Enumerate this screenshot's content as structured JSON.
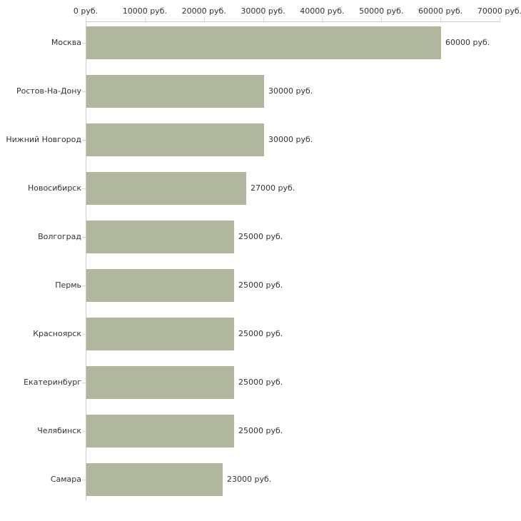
{
  "chart_data": {
    "type": "bar",
    "orientation": "horizontal",
    "title": "",
    "xlabel": "",
    "ylabel": "",
    "unit": "руб.",
    "categories": [
      "Москва",
      "Ростов-На-Дону",
      "Нижний Новгород",
      "Новосибирск",
      "Волгоград",
      "Пермь",
      "Красноярск",
      "Екатеринбург",
      "Челябинск",
      "Самара"
    ],
    "values": [
      60000,
      30000,
      30000,
      27000,
      25000,
      25000,
      25000,
      25000,
      25000,
      23000
    ],
    "value_labels": [
      "60000 руб.",
      "30000 руб.",
      "30000 руб.",
      "27000 руб.",
      "25000 руб.",
      "25000 руб.",
      "25000 руб.",
      "25000 руб.",
      "25000 руб.",
      "23000 руб."
    ],
    "x_ticks": [
      {
        "value": 0,
        "label": "0 руб."
      },
      {
        "value": 10000,
        "label": "10000 руб."
      },
      {
        "value": 20000,
        "label": "20000 руб."
      },
      {
        "value": 30000,
        "label": "30000 руб."
      },
      {
        "value": 40000,
        "label": "40000 руб."
      },
      {
        "value": 50000,
        "label": "50000 руб."
      },
      {
        "value": 60000,
        "label": "60000 руб."
      },
      {
        "value": 70000,
        "label": "70000 руб."
      }
    ],
    "xlim": [
      0,
      70000
    ],
    "grid": false,
    "legend": null,
    "colors": {
      "bar": "#b1b79c",
      "tick": "#d9dcbe",
      "axis": "#cccccc",
      "text": "#333333",
      "background": "#ffffff"
    }
  }
}
